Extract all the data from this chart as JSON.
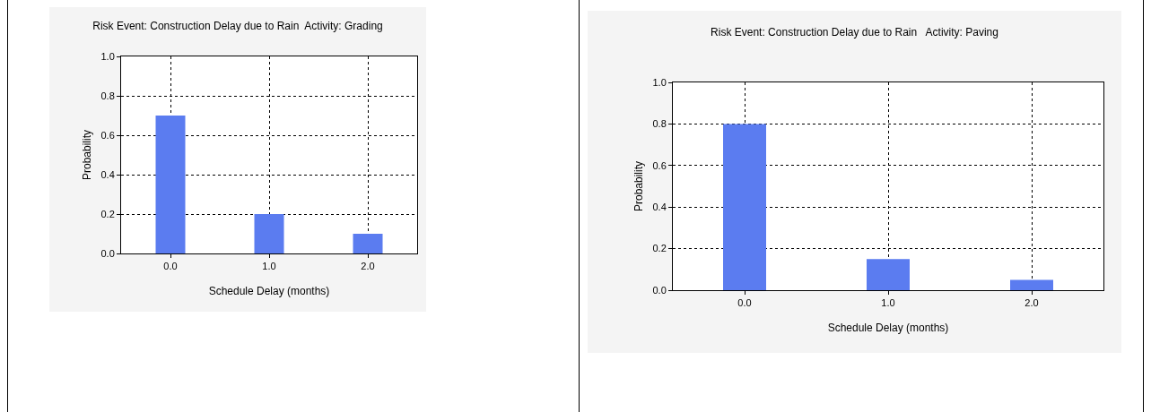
{
  "chart_data": [
    {
      "type": "bar",
      "title": "Risk Event: Construction Delay due to Rain  Activity: Grading",
      "xlabel": "Schedule Delay (months)",
      "ylabel": "Probability",
      "categories": [
        "0.0",
        "1.0",
        "2.0"
      ],
      "values": [
        0.7,
        0.2,
        0.1
      ],
      "color": "#5b7cf0",
      "ylim": [
        0,
        1
      ],
      "yticks": [
        {
          "value": 0,
          "label": "0.0"
        },
        {
          "value": 0.2,
          "label": "0.2"
        },
        {
          "value": 0.4,
          "label": "0.4"
        },
        {
          "value": 0.6,
          "label": "0.6"
        },
        {
          "value": 0.8,
          "label": "0.8"
        },
        {
          "value": 1,
          "label": "1.0"
        }
      ],
      "grid": true
    },
    {
      "type": "bar",
      "title": "Risk Event: Construction Delay due to Rain   Activity: Paving",
      "xlabel": "Schedule Delay (months)",
      "ylabel": "Probability",
      "categories": [
        "0.0",
        "1.0",
        "2.0"
      ],
      "values": [
        0.8,
        0.15,
        0.05
      ],
      "color": "#5b7cf0",
      "ylim": [
        0,
        1
      ],
      "yticks": [
        {
          "value": 0,
          "label": "0.0"
        },
        {
          "value": 0.2,
          "label": "0.2"
        },
        {
          "value": 0.4,
          "label": "0.4"
        },
        {
          "value": 0.6,
          "label": "0.6"
        },
        {
          "value": 0.8,
          "label": "0.8"
        },
        {
          "value": 1,
          "label": "1.0"
        }
      ],
      "grid": true
    }
  ]
}
